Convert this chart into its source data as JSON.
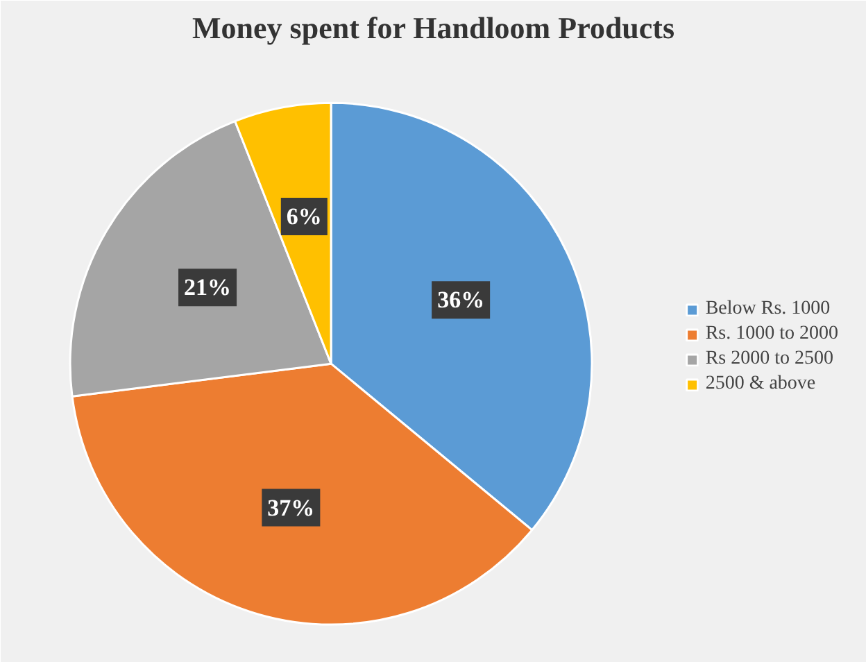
{
  "chart_data": {
    "type": "pie",
    "title": "Money spent for Handloom Products",
    "categories": [
      "Below Rs. 1000",
      "Rs. 1000 to 2000",
      "Rs 2000 to 2500",
      "2500 & above"
    ],
    "values": [
      36,
      37,
      21,
      6
    ],
    "colors": [
      "#5b9bd5",
      "#ed7d31",
      "#a5a5a5",
      "#ffc000"
    ],
    "value_labels": [
      "36%",
      "37%",
      "21%",
      "6%"
    ],
    "legend": "right"
  }
}
